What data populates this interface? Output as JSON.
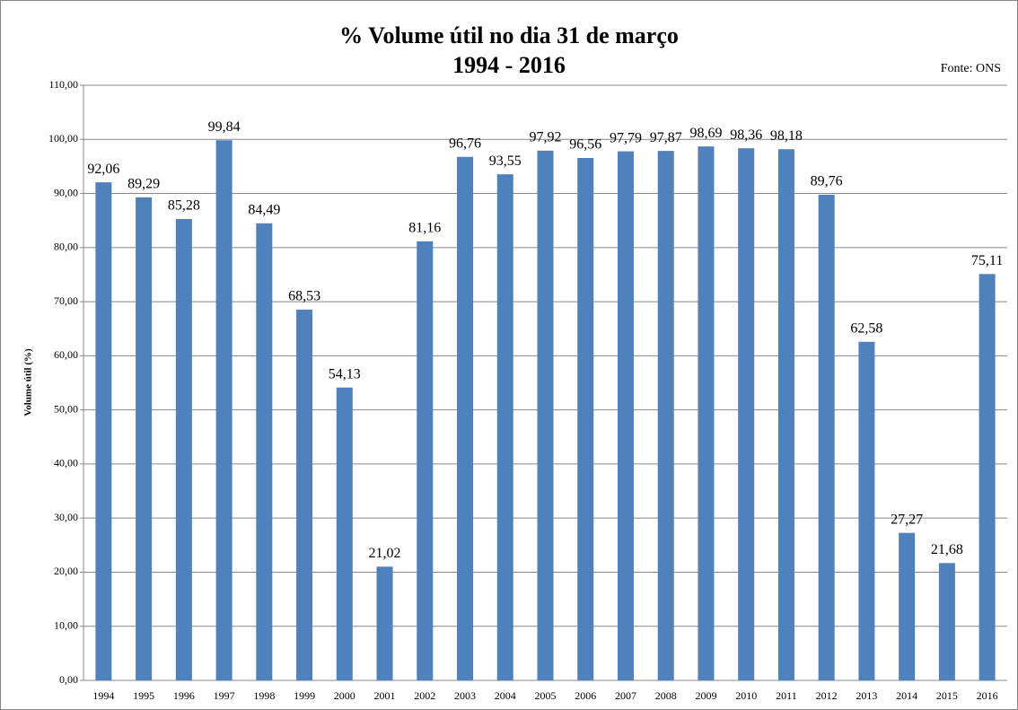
{
  "chart_data": {
    "type": "bar",
    "title": "% Volume útil no dia 31 de março",
    "subtitle": "1994 - 2016",
    "source": "Fonte: ONS",
    "y_label": "Volume útil (%)",
    "categories": [
      "1994",
      "1995",
      "1996",
      "1997",
      "1998",
      "1999",
      "2000",
      "2001",
      "2002",
      "2003",
      "2004",
      "2005",
      "2006",
      "2007",
      "2008",
      "2009",
      "2010",
      "2011",
      "2012",
      "2013",
      "2014",
      "2015",
      "2016"
    ],
    "values": [
      92.06,
      89.29,
      85.28,
      99.84,
      84.49,
      68.53,
      54.13,
      21.02,
      81.16,
      96.76,
      93.55,
      97.92,
      96.56,
      97.79,
      97.87,
      98.69,
      98.36,
      98.18,
      89.76,
      62.58,
      27.27,
      21.68,
      75.11
    ],
    "value_labels": [
      "92,06",
      "89,29",
      "85,28",
      "99,84",
      "84,49",
      "68,53",
      "54,13",
      "21,02",
      "81,16",
      "96,76",
      "93,55",
      "97,92",
      "96,56",
      "97,79",
      "97,87",
      "98,69",
      "98,36",
      "98,18",
      "89,76",
      "62,58",
      "27,27",
      "21,68",
      "75,11"
    ],
    "color": "#4f81bd",
    "ylim": [
      0,
      110
    ],
    "yticks": [
      {
        "value": 0,
        "label": "0,00"
      },
      {
        "value": 10,
        "label": "10,00"
      },
      {
        "value": 20,
        "label": "20,00"
      },
      {
        "value": 30,
        "label": "30,00"
      },
      {
        "value": 40,
        "label": "40,00"
      },
      {
        "value": 50,
        "label": "50,00"
      },
      {
        "value": 60,
        "label": "60,00"
      },
      {
        "value": 70,
        "label": "70,00"
      },
      {
        "value": 80,
        "label": "80,00"
      },
      {
        "value": 90,
        "label": "90,00"
      },
      {
        "value": 100,
        "label": "100,00"
      },
      {
        "value": 110,
        "label": "110,00"
      }
    ],
    "grid": true
  }
}
